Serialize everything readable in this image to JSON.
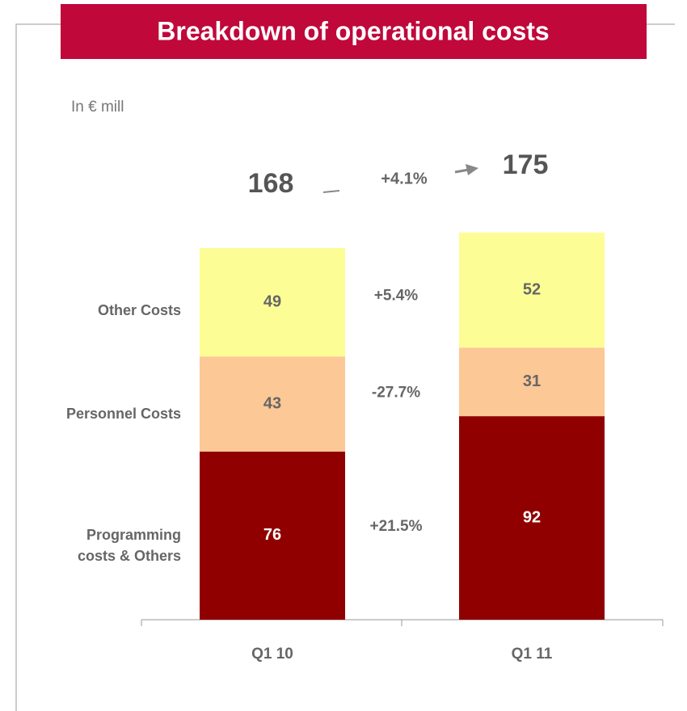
{
  "chart_data": {
    "type": "stacked_bar",
    "title": "Breakdown of operational costs",
    "subtitle": "In € mill",
    "categories": [
      "Q1 10",
      "Q1 11"
    ],
    "series": [
      {
        "name": "Programming costs & Others",
        "color": "#900000",
        "values": [
          76,
          92
        ],
        "change": "+21.5%"
      },
      {
        "name": "Personnel Costs",
        "color": "#fcc896",
        "values": [
          43,
          31
        ],
        "change": "-27.7%"
      },
      {
        "name": "Other Costs",
        "color": "#fdfd96",
        "values": [
          49,
          52
        ],
        "change": "+5.4%"
      }
    ],
    "totals": [
      168,
      175
    ],
    "total_change": "+4.1%"
  }
}
